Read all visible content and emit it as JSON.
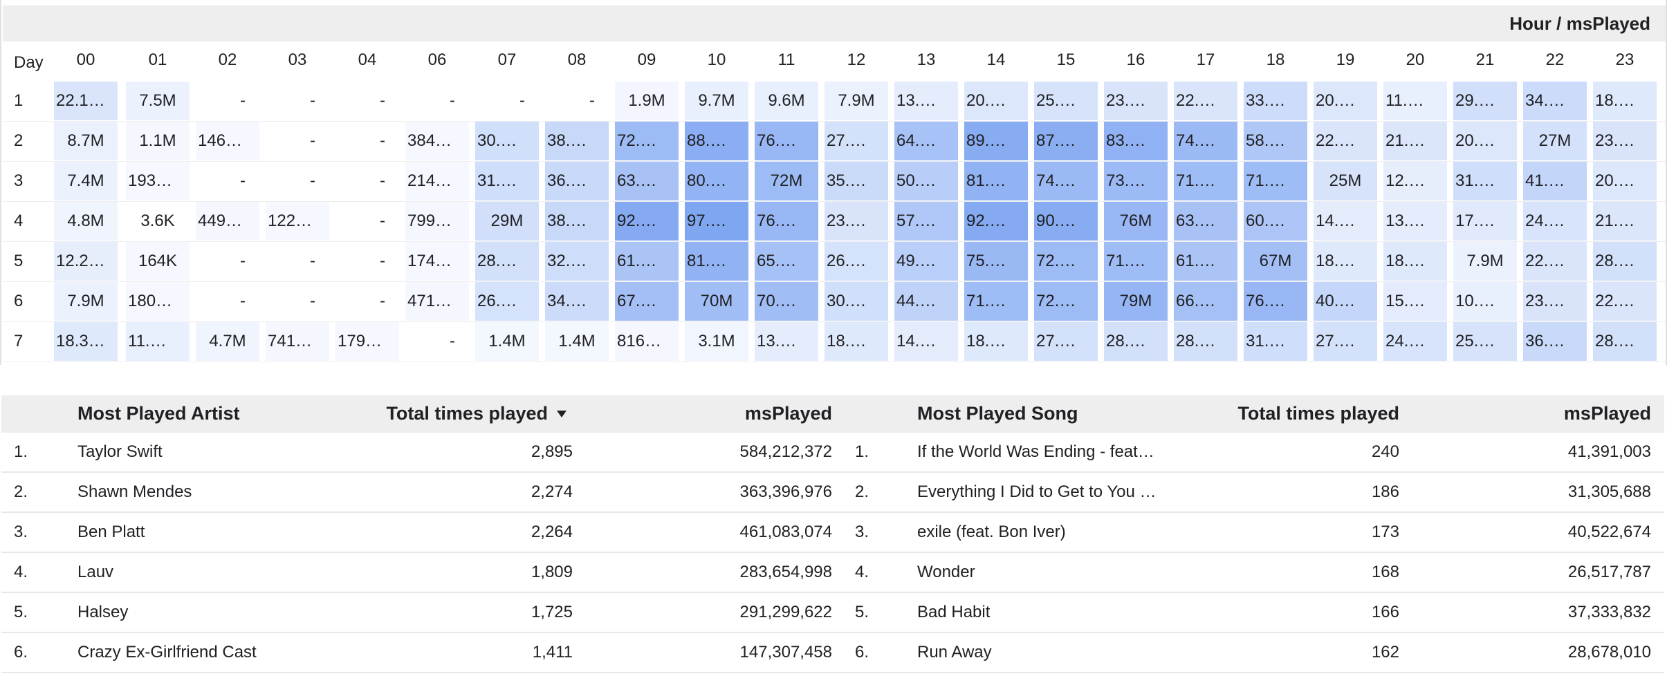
{
  "pivot": {
    "title": "Hour / msPlayed",
    "row_header_label": "Day",
    "hours": [
      "00",
      "01",
      "02",
      "03",
      "04",
      "06",
      "07",
      "08",
      "09",
      "10",
      "11",
      "12",
      "13",
      "14",
      "15",
      "16",
      "17",
      "18",
      "19",
      "20",
      "21",
      "22",
      "23"
    ],
    "rows": [
      {
        "day": "1",
        "cells": [
          "22.1…",
          "7.5M",
          "-",
          "-",
          "-",
          "-",
          "-",
          "-",
          "1.9M",
          "9.7M",
          "9.6M",
          "7.9M",
          "13.…",
          "20.…",
          "25.…",
          "23.…",
          "22.…",
          "33.…",
          "20.…",
          "11.…",
          "29.…",
          "34.…",
          "18.…"
        ]
      },
      {
        "day": "2",
        "cells": [
          "8.7M",
          "1.1M",
          "146…",
          "-",
          "-",
          "384…",
          "30.…",
          "38.…",
          "72.…",
          "88.…",
          "76.…",
          "27.…",
          "64.…",
          "89.…",
          "87.…",
          "83.…",
          "74.…",
          "58.…",
          "22.…",
          "21.…",
          "20.…",
          "27M",
          "23.…"
        ]
      },
      {
        "day": "3",
        "cells": [
          "7.4M",
          "193…",
          "-",
          "-",
          "-",
          "214…",
          "31.…",
          "36.…",
          "63.…",
          "80.…",
          "72M",
          "35.…",
          "50.…",
          "81.…",
          "74.…",
          "73.…",
          "71.…",
          "71.…",
          "25M",
          "12.…",
          "31.…",
          "41.…",
          "20.…"
        ]
      },
      {
        "day": "4",
        "cells": [
          "4.8M",
          "3.6K",
          "449…",
          "122…",
          "-",
          "799…",
          "29M",
          "38.…",
          "92.…",
          "97.…",
          "76.…",
          "23.…",
          "57.…",
          "92.…",
          "90.…",
          "76M",
          "63.…",
          "60.…",
          "14.…",
          "13.…",
          "17.…",
          "24.…",
          "21.…"
        ]
      },
      {
        "day": "5",
        "cells": [
          "12.2…",
          "164K",
          "-",
          "-",
          "-",
          "174…",
          "28.…",
          "32.…",
          "61.…",
          "81.…",
          "65.…",
          "26.…",
          "49.…",
          "75.…",
          "72.…",
          "71.…",
          "61.…",
          "67M",
          "18.…",
          "18.…",
          "7.9M",
          "22.…",
          "28.…"
        ]
      },
      {
        "day": "6",
        "cells": [
          "7.9M",
          "180…",
          "-",
          "-",
          "-",
          "471…",
          "26.…",
          "34.…",
          "67.…",
          "70M",
          "70.…",
          "30.…",
          "44.…",
          "71.…",
          "72.…",
          "79M",
          "66.…",
          "76.…",
          "40.…",
          "15.…",
          "10.…",
          "23.…",
          "22.…"
        ]
      },
      {
        "day": "7",
        "cells": [
          "18.3…",
          "11.…",
          "4.7M",
          "741…",
          "179…",
          "-",
          "1.4M",
          "1.4M",
          "816…",
          "3.1M",
          "13.…",
          "18.…",
          "14.…",
          "18.…",
          "27.…",
          "28.…",
          "28.…",
          "31.…",
          "27.…",
          "24.…",
          "25.…",
          "36.…",
          "28.…"
        ]
      }
    ],
    "intensity": [
      [
        0.22,
        0.075,
        0,
        0,
        0,
        0,
        0,
        0,
        0.019,
        0.097,
        0.096,
        0.079,
        0.13,
        0.2,
        0.25,
        0.23,
        0.22,
        0.33,
        0.2,
        0.11,
        0.29,
        0.34,
        0.18
      ],
      [
        0.087,
        0.011,
        0.0015,
        0,
        0,
        0.004,
        0.3,
        0.38,
        0.72,
        0.88,
        0.76,
        0.27,
        0.64,
        0.89,
        0.87,
        0.83,
        0.74,
        0.58,
        0.22,
        0.21,
        0.2,
        0.27,
        0.23
      ],
      [
        0.074,
        0.002,
        0,
        0,
        0,
        0.002,
        0.31,
        0.36,
        0.63,
        0.8,
        0.72,
        0.35,
        0.5,
        0.81,
        0.74,
        0.73,
        0.71,
        0.71,
        0.25,
        0.12,
        0.31,
        0.41,
        0.2
      ],
      [
        0.048,
        0,
        0.0045,
        0.0012,
        0,
        0.008,
        0.29,
        0.38,
        0.92,
        0.97,
        0.76,
        0.23,
        0.57,
        0.92,
        0.9,
        0.76,
        0.63,
        0.6,
        0.14,
        0.13,
        0.17,
        0.24,
        0.21
      ],
      [
        0.12,
        0.0016,
        0,
        0,
        0,
        0.0017,
        0.28,
        0.32,
        0.61,
        0.81,
        0.65,
        0.26,
        0.49,
        0.75,
        0.72,
        0.71,
        0.61,
        0.67,
        0.18,
        0.18,
        0.079,
        0.22,
        0.28
      ],
      [
        0.079,
        0.0018,
        0,
        0,
        0,
        0.0047,
        0.26,
        0.34,
        0.67,
        0.7,
        0.7,
        0.3,
        0.44,
        0.71,
        0.72,
        0.79,
        0.66,
        0.76,
        0.4,
        0.15,
        0.1,
        0.23,
        0.22
      ],
      [
        0.18,
        0.11,
        0.047,
        0.0074,
        0.0018,
        0,
        0.014,
        0.014,
        0.008,
        0.031,
        0.13,
        0.18,
        0.14,
        0.18,
        0.27,
        0.28,
        0.28,
        0.31,
        0.27,
        0.24,
        0.25,
        0.36,
        0.28
      ]
    ]
  },
  "artists_table": {
    "headers": {
      "name": "Most Played Artist",
      "times": "Total times played",
      "ms": "msPlayed"
    },
    "sort_icon": "sort-descending-icon",
    "rows": [
      {
        "rank": "1.",
        "name": "Taylor Swift",
        "times": "2,895",
        "ms": "584,212,372"
      },
      {
        "rank": "2.",
        "name": "Shawn Mendes",
        "times": "2,274",
        "ms": "363,396,976"
      },
      {
        "rank": "3.",
        "name": "Ben Platt",
        "times": "2,264",
        "ms": "461,083,074"
      },
      {
        "rank": "4.",
        "name": "Lauv",
        "times": "1,809",
        "ms": "283,654,998"
      },
      {
        "rank": "5.",
        "name": "Halsey",
        "times": "1,725",
        "ms": "291,299,622"
      },
      {
        "rank": "6.",
        "name": "Crazy Ex-Girlfriend Cast",
        "times": "1,411",
        "ms": "147,307,458"
      }
    ]
  },
  "songs_table": {
    "headers": {
      "name": "Most Played Song",
      "times": "Total times played",
      "ms": "msPlayed"
    },
    "rows": [
      {
        "rank": "1.",
        "name": "If the World Was Ending - feat…",
        "times": "240",
        "ms": "41,391,003"
      },
      {
        "rank": "2.",
        "name": "Everything I Did to Get to You …",
        "times": "186",
        "ms": "31,305,688"
      },
      {
        "rank": "3.",
        "name": "exile (feat. Bon Iver)",
        "times": "173",
        "ms": "40,522,674"
      },
      {
        "rank": "4.",
        "name": "Wonder",
        "times": "168",
        "ms": "26,517,787"
      },
      {
        "rank": "5.",
        "name": "Bad Habit",
        "times": "166",
        "ms": "37,333,832"
      },
      {
        "rank": "6.",
        "name": "Run Away",
        "times": "162",
        "ms": "28,678,010"
      }
    ]
  },
  "colors": {
    "heat_base": "#f5f8fe",
    "heat_full": "#7ba3f1",
    "header_bg": "#eeeeee",
    "text": "#202124"
  }
}
